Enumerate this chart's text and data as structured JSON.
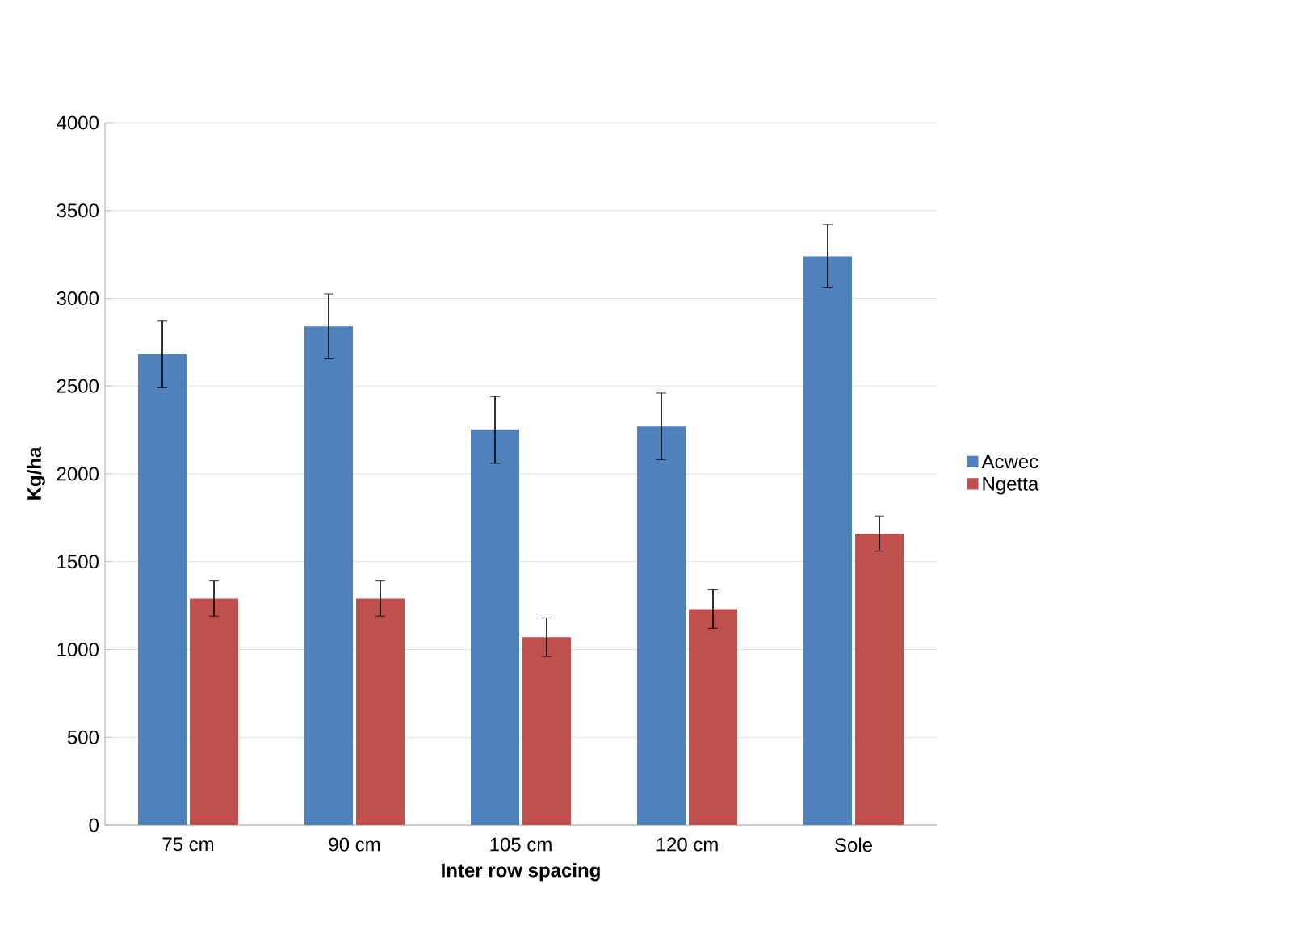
{
  "chart_data": {
    "type": "bar",
    "xlabel": "Inter row spacing",
    "ylabel": "Kg/ha",
    "categories": [
      "75 cm",
      "90 cm",
      "105 cm",
      "120 cm",
      "Sole"
    ],
    "series": [
      {
        "name": "Acwec",
        "color": "#4f81bd",
        "values": [
          2680,
          2840,
          2250,
          2270,
          3240
        ],
        "errors": [
          190,
          185,
          190,
          190,
          180
        ]
      },
      {
        "name": "Ngetta",
        "color": "#c0504d",
        "values": [
          1290,
          1290,
          1070,
          1230,
          1660
        ],
        "errors": [
          100,
          100,
          110,
          110,
          100
        ]
      }
    ],
    "ylim": [
      0,
      4000
    ],
    "yticks": [
      0,
      500,
      1000,
      1500,
      2000,
      2500,
      3000,
      3500,
      4000
    ],
    "grid": "y",
    "legend": "right"
  }
}
